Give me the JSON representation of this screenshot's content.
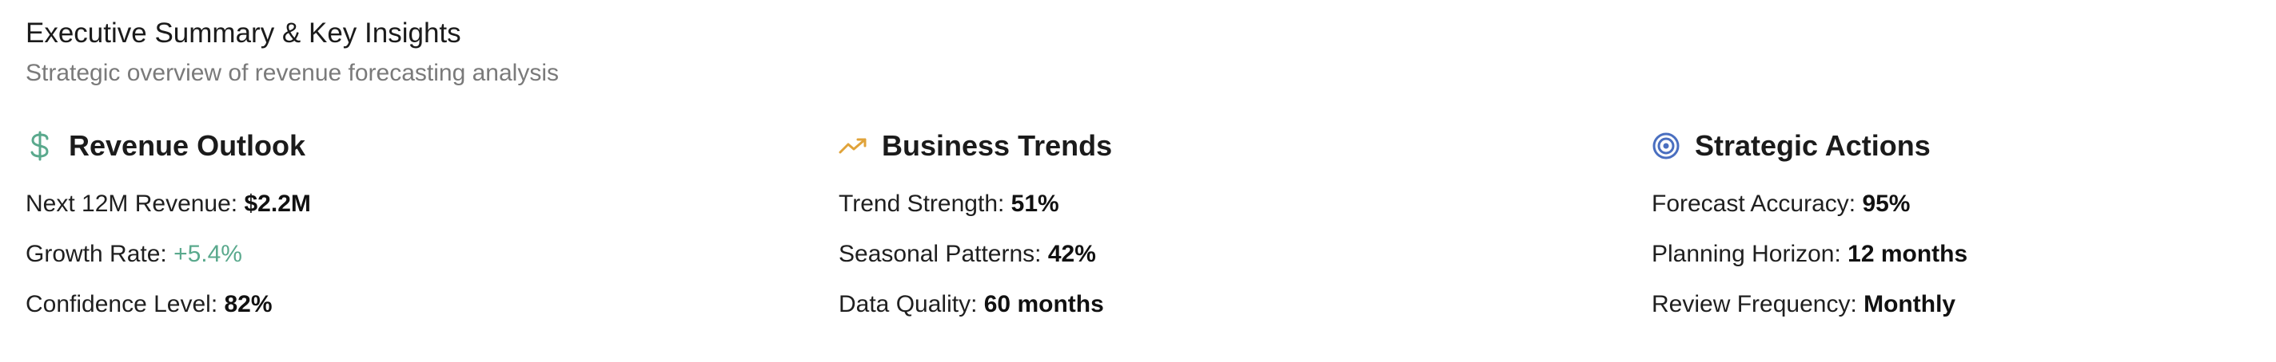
{
  "header": {
    "title": "Executive Summary & Key Insights",
    "subtitle": "Strategic overview of revenue forecasting analysis"
  },
  "colors": {
    "positive": "#5aa98d",
    "revenue_icon": "#5aa98d",
    "trends_icon": "#e0a33a",
    "actions_icon": "#4a6fc0"
  },
  "sections": [
    {
      "icon": "dollar-icon",
      "title": "Revenue Outlook",
      "metrics": [
        {
          "label": "Next 12M Revenue: ",
          "value": "$2.2M"
        },
        {
          "label": "Growth Rate: ",
          "value": "+5.4%"
        },
        {
          "label": "Confidence Level: ",
          "value": "82%"
        }
      ]
    },
    {
      "icon": "trending-up-icon",
      "title": "Business Trends",
      "metrics": [
        {
          "label": "Trend Strength: ",
          "value": "51%"
        },
        {
          "label": "Seasonal Patterns: ",
          "value": "42%"
        },
        {
          "label": "Data Quality: ",
          "value": "60 months"
        }
      ]
    },
    {
      "icon": "target-icon",
      "title": "Strategic Actions",
      "metrics": [
        {
          "label": "Forecast Accuracy: ",
          "value": "95%"
        },
        {
          "label": "Planning Horizon: ",
          "value": "12 months"
        },
        {
          "label": "Review Frequency: ",
          "value": "Monthly"
        }
      ]
    }
  ]
}
